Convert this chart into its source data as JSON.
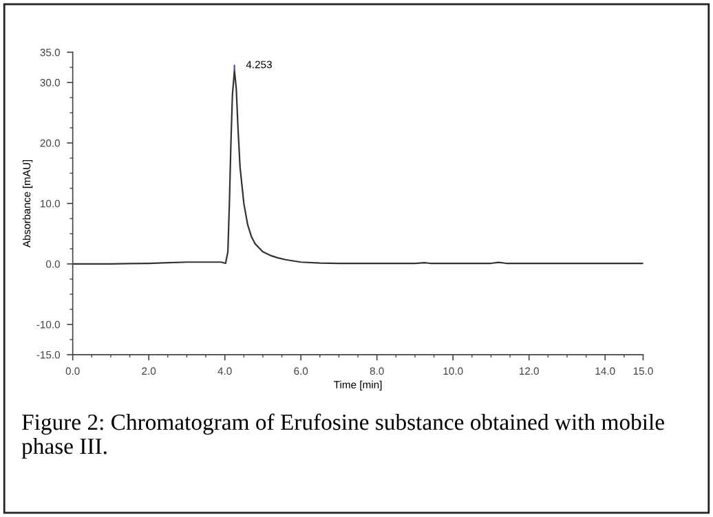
{
  "chart_data": {
    "type": "line",
    "xlabel": "Time [min]",
    "ylabel": "Absorbance [mAU]",
    "x": [
      0.0,
      0.5,
      1.0,
      1.5,
      2.0,
      2.5,
      3.0,
      3.5,
      3.9,
      4.02,
      4.08,
      4.12,
      4.16,
      4.2,
      4.253,
      4.3,
      4.35,
      4.4,
      4.5,
      4.6,
      4.7,
      4.8,
      5.0,
      5.2,
      5.4,
      5.6,
      5.8,
      6.0,
      6.5,
      7.0,
      8.0,
      9.0,
      9.25,
      9.4,
      10.0,
      11.0,
      11.2,
      11.4,
      12.0,
      13.0,
      14.0,
      15.0
    ],
    "series": [
      {
        "color": "#333333",
        "values": [
          0.0,
          0.0,
          0.0,
          0.05,
          0.1,
          0.2,
          0.3,
          0.3,
          0.3,
          0.1,
          2.0,
          10.0,
          20.0,
          28.0,
          32.0,
          29.0,
          22.0,
          16.0,
          10.0,
          6.5,
          4.5,
          3.3,
          2.0,
          1.4,
          1.0,
          0.7,
          0.5,
          0.3,
          0.15,
          0.1,
          0.1,
          0.1,
          0.2,
          0.1,
          0.1,
          0.1,
          0.25,
          0.1,
          0.1,
          0.1,
          0.1,
          0.1
        ]
      }
    ],
    "xlim": [
      0,
      15
    ],
    "ylim": [
      -15,
      35
    ],
    "xticks": [
      {
        "value": 0,
        "label": "0.0"
      },
      {
        "value": 2,
        "label": "2.0"
      },
      {
        "value": 4,
        "label": "4.0"
      },
      {
        "value": 6,
        "label": "6.0"
      },
      {
        "value": 8,
        "label": "8.0"
      },
      {
        "value": 10,
        "label": "10.0"
      },
      {
        "value": 12,
        "label": "12.0"
      },
      {
        "value": 14,
        "label": "14.0"
      },
      {
        "value": 15,
        "label": "15.0"
      }
    ],
    "yticks": [
      {
        "value": -15,
        "label": "-15.0"
      },
      {
        "value": -10,
        "label": "-10.0"
      },
      {
        "value": 0,
        "label": "0.0"
      },
      {
        "value": 10,
        "label": "10.0"
      },
      {
        "value": 20,
        "label": "20.0"
      },
      {
        "value": 30,
        "label": "30.0"
      },
      {
        "value": 35,
        "label": "35.0"
      }
    ],
    "grid": false,
    "legend": false,
    "marker": "none",
    "line_style": "solid",
    "annotations": [
      {
        "text": "4.253",
        "x": 4.253,
        "y": 32.0
      },
      "Figure 2: Chromatogram of Erufosine substance obtained with mobile phase III."
    ]
  }
}
